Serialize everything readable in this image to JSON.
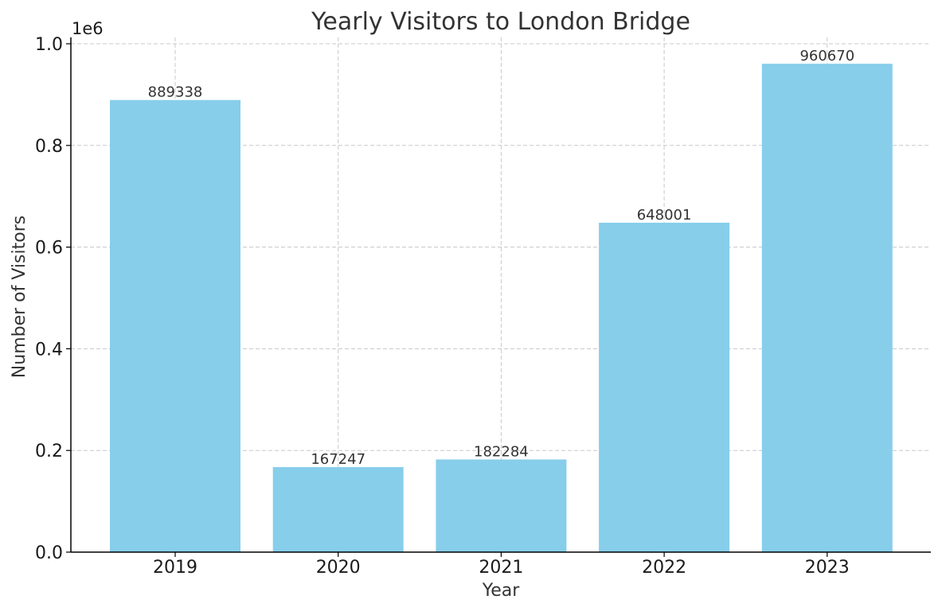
{
  "chart_data": {
    "type": "bar",
    "title": "Yearly Visitors to London Bridge",
    "xlabel": "Year",
    "ylabel": "Number of Visitors",
    "categories": [
      "2019",
      "2020",
      "2021",
      "2022",
      "2023"
    ],
    "values": [
      889338,
      167247,
      182284,
      648001,
      960670
    ],
    "data_labels": [
      "889338",
      "167247",
      "182284",
      "648001",
      "960670"
    ],
    "ylim": [
      0,
      1000000
    ],
    "y_ticks": [
      0,
      200000,
      400000,
      600000,
      800000,
      1000000
    ],
    "y_tick_labels": [
      "0.0",
      "0.2",
      "0.4",
      "0.6",
      "0.8",
      "1.0"
    ],
    "y_offset_label": "1e6",
    "grid": true,
    "bar_color": "#87CEEB"
  }
}
